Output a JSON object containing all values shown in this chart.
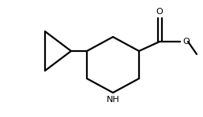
{
  "background_color": "#ffffff",
  "line_color": "#000000",
  "line_width": 1.6,
  "text_color": "#000000",
  "font_size": 8,
  "figsize": [
    2.57,
    1.49
  ],
  "dpi": 100,
  "xlim": [
    0,
    257
  ],
  "ylim": [
    0,
    149
  ]
}
